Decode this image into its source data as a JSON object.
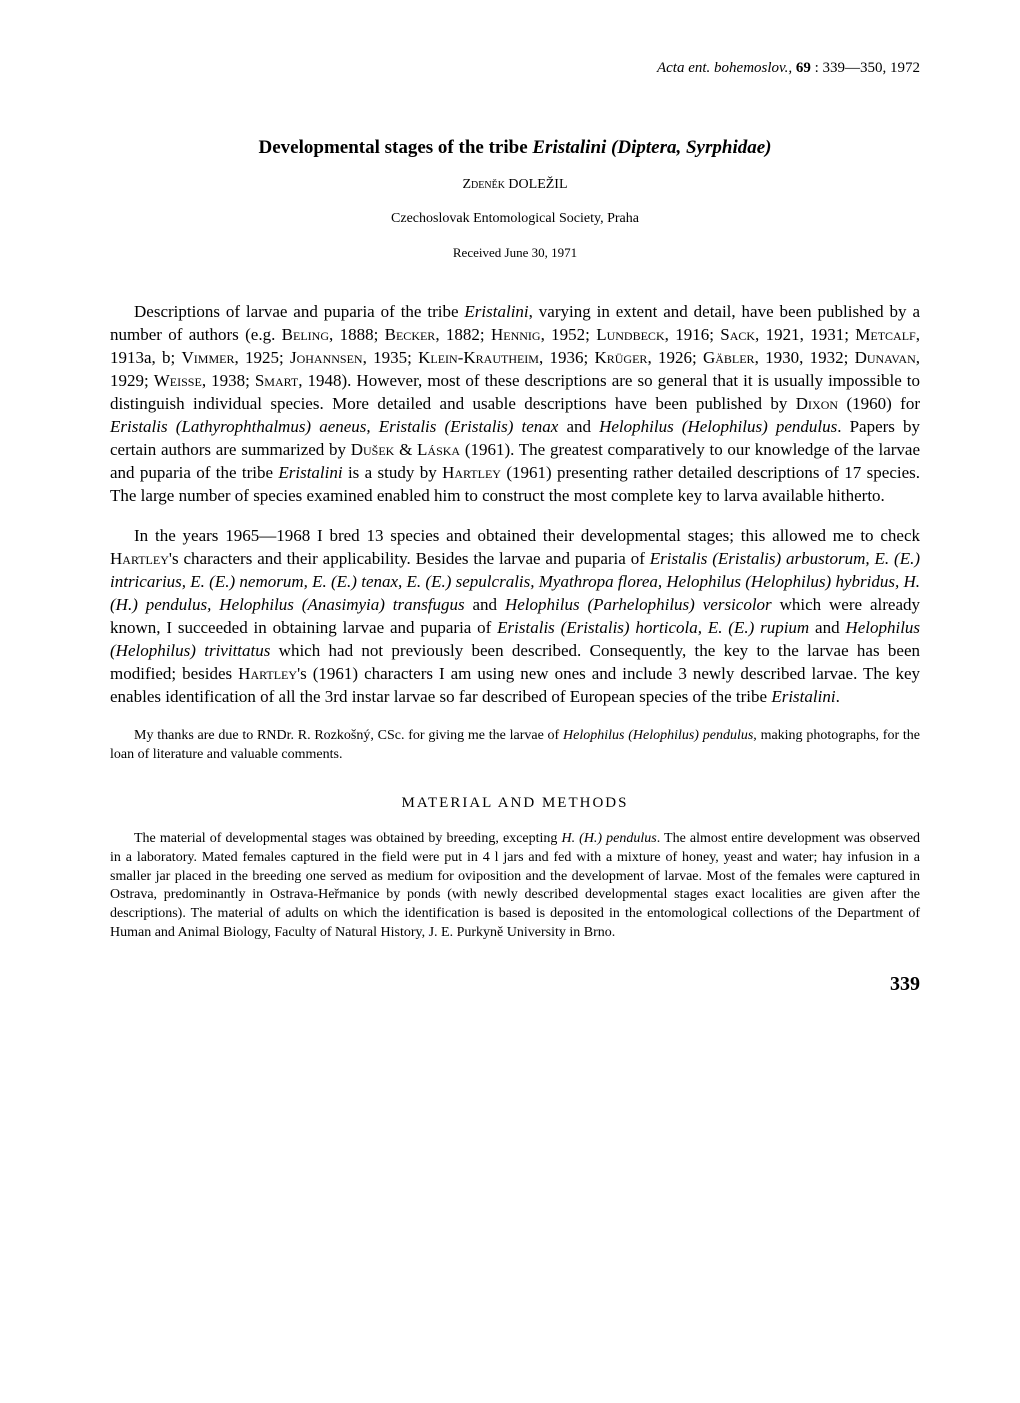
{
  "citation": {
    "journal": "Acta ent. bohemoslov.,",
    "volume": "69",
    "pages": ": 339—350,",
    "year": "1972"
  },
  "title": {
    "prefix": "Developmental stages of the tribe ",
    "italic": "Eristalini (Diptera, Syrphidae)"
  },
  "author": "Zdeněk DOLEŽIL",
  "affiliation": "Czechoslovak Entomological Society, Praha",
  "received": "Received June 30, 1971",
  "paragraph1_html": "Descriptions of larvae and puparia of the tribe <span class=\"italic\">Eristalini</span>, varying in extent and detail, have been published by a number of authors (e.g. <span class=\"smallcaps\">Beling</span>, 1888; <span class=\"smallcaps\">Becker</span>, 1882; <span class=\"smallcaps\">Hennig</span>, 1952; <span class=\"smallcaps\">Lundbeck</span>, 1916; <span class=\"smallcaps\">Sack</span>, 1921, 1931; <span class=\"smallcaps\">Metcalf</span>, 1913a, b; <span class=\"smallcaps\">Vimmer</span>, 1925; <span class=\"smallcaps\">Johannsen</span>, 1935; <span class=\"smallcaps\">Klein-Krautheim</span>, 1936; <span class=\"smallcaps\">Krüger</span>, 1926; <span class=\"smallcaps\">Gäbler</span>, 1930, 1932; <span class=\"smallcaps\">Dunavan</span>, 1929; <span class=\"smallcaps\">Weisse</span>, 1938; <span class=\"smallcaps\">Smart</span>, 1948). However, most of these descriptions are so general that it is usually impossible to distinguish individual species. More detailed and usable descriptions have been published by <span class=\"smallcaps\">Dixon</span> (1960) for <span class=\"italic\">Eristalis (Lathyrophthalmus) aeneus, Eristalis (Eristalis) tenax</span> and <span class=\"italic\">Helophilus (Helophilus) pendulus</span>. Papers by certain authors are summarized by <span class=\"smallcaps\">Dušek</span> & <span class=\"smallcaps\">Láska</span> (1961). The greatest comparatively to our knowledge of the larvae and puparia of the tribe <span class=\"italic\">Eristalini</span> is a study by <span class=\"smallcaps\">Hartley</span> (1961) presenting rather detailed descriptions of 17 species. The large number of species examined enabled him to construct the most complete key to larva available hitherto.",
  "paragraph2_html": "In the years 1965—1968 I bred 13 species and obtained their developmental stages; this allowed me to check <span class=\"smallcaps\">Hartley</span>'s characters and their applicability. Besides the larvae and puparia of <span class=\"italic\">Eristalis (Eristalis) arbustorum, E. (E.) intricarius, E. (E.) nemorum, E. (E.) tenax, E. (E.) sepulcralis, Myathropa florea, Helophilus (Helophilus) hybridus, H. (H.) pendulus, Helophilus (Anasimyia) transfugus</span> and <span class=\"italic\">Helophilus (Parhelophilus) versicolor</span> which were already known, I succeeded in obtaining larvae and puparia of <span class=\"italic\">Eristalis (Eristalis) horticola, E. (E.) rupium</span> and <span class=\"italic\">Helophilus (Helophilus) trivittatus</span> which had not previously been described. Consequently, the key to the larvae has been modified; besides <span class=\"smallcaps\">Hartley</span>'s (1961) characters I am using new ones and include 3 newly described larvae. The key enables identification of all the 3rd instar larvae so far described of European species of the tribe <span class=\"italic\">Eristalini</span>.",
  "acknowledgment_html": "My thanks are due to RNDr. R. Rozkošný, CSc. for giving me the larvae of <span class=\"italic\">Helophilus (Helophilus) pendulus</span>, making photographs, for the loan of literature and valuable comments.",
  "section_heading": "MATERIAL AND METHODS",
  "methods_html": "The material of developmental stages was obtained by breeding, excepting <span class=\"italic\">H. (H.) pendulus</span>. The almost entire development was observed in a laboratory. Mated females captured in the field were put in 4 l jars and fed with a mixture of honey, yeast and water; hay infusion in a smaller jar placed in the breeding one served as medium for oviposition and the development of larvae. Most of the females were captured in Ostrava, predominantly in Ostrava-Heřmanice by ponds (with newly described developmental stages exact localities are given after the descriptions). The material of adults on which the identification is based is deposited in the entomological collections of the Department of Human and Animal Biology, Faculty of Natural History, J. E. Purkyně University in Brno.",
  "page_number": "339"
}
